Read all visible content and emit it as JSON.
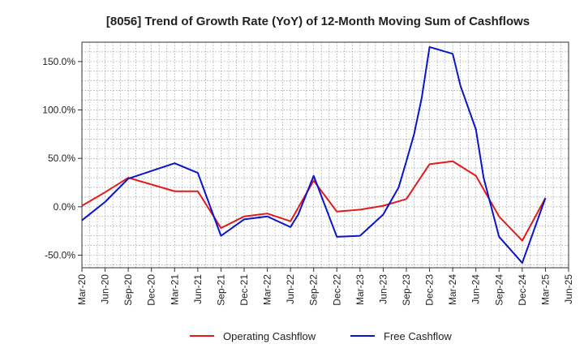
{
  "chart_data": {
    "type": "line",
    "title": "[8056]  Trend of Growth Rate (YoY) of 12-Month Moving Sum of Cashflows",
    "xlabel": "",
    "ylabel": "",
    "x": [
      "Mar-20",
      "Apr-20",
      "May-20",
      "Jun-20",
      "Jul-20",
      "Aug-20",
      "Sep-20",
      "Oct-20",
      "Nov-20",
      "Dec-20",
      "Jan-21",
      "Feb-21",
      "Mar-21",
      "Apr-21",
      "May-21",
      "Jun-21",
      "Jul-21",
      "Aug-21",
      "Sep-21",
      "Oct-21",
      "Nov-21",
      "Dec-21",
      "Jan-22",
      "Feb-22",
      "Mar-22",
      "Apr-22",
      "May-22",
      "Jun-22",
      "Jul-22",
      "Aug-22",
      "Sep-22",
      "Oct-22",
      "Nov-22",
      "Dec-22",
      "Jan-23",
      "Feb-23",
      "Mar-23",
      "Apr-23",
      "May-23",
      "Jun-23",
      "Jul-23",
      "Aug-23",
      "Sep-23",
      "Oct-23",
      "Nov-23",
      "Dec-23",
      "Jan-24",
      "Feb-24",
      "Mar-24",
      "Apr-24",
      "May-24",
      "Jun-24",
      "Jul-24",
      "Aug-24",
      "Sep-24",
      "Oct-24",
      "Nov-24",
      "Dec-24",
      "Jan-25",
      "Feb-25",
      "Mar-25"
    ],
    "x_tick_labels": [
      "Mar-20",
      "Jun-20",
      "Sep-20",
      "Dec-20",
      "Mar-21",
      "Jun-21",
      "Sep-21",
      "Dec-21",
      "Mar-22",
      "Jun-22",
      "Sep-22",
      "Dec-22",
      "Mar-23",
      "Jun-23",
      "Sep-23",
      "Dec-23",
      "Mar-24",
      "Jun-24",
      "Sep-24",
      "Dec-24",
      "Mar-25",
      "Jun-25"
    ],
    "y_ticks": [
      -50,
      0,
      50,
      100,
      150
    ],
    "y_tick_labels": [
      "-50.0%",
      "0.0%",
      "50.0%",
      "100.0%",
      "150.0%"
    ],
    "ylim": [
      -63,
      170
    ],
    "x_range_months": [
      0,
      63
    ],
    "grid": true,
    "legend_position": "bottom",
    "series": [
      {
        "name": "Operating Cashflow",
        "color": "#e31a1c",
        "points": [
          [
            0,
            1
          ],
          [
            3,
            15
          ],
          [
            6,
            30
          ],
          [
            9,
            23
          ],
          [
            12,
            16
          ],
          [
            15,
            16
          ],
          [
            18,
            -22
          ],
          [
            21,
            -10
          ],
          [
            24,
            -7
          ],
          [
            27,
            -15
          ],
          [
            30,
            27
          ],
          [
            33,
            -5
          ],
          [
            36,
            -3
          ],
          [
            39,
            1
          ],
          [
            42,
            8
          ],
          [
            45,
            44
          ],
          [
            48,
            47
          ],
          [
            51,
            32
          ],
          [
            54,
            -10
          ],
          [
            57,
            -35
          ],
          [
            60,
            9
          ]
        ]
      },
      {
        "name": "Free Cashflow",
        "color": "#0a14c8",
        "points": [
          [
            0,
            -14
          ],
          [
            3,
            5
          ],
          [
            6,
            29
          ],
          [
            9,
            37
          ],
          [
            12,
            45
          ],
          [
            15,
            35
          ],
          [
            18,
            -30
          ],
          [
            21,
            -13
          ],
          [
            24,
            -10
          ],
          [
            27,
            -21
          ],
          [
            28,
            -8
          ],
          [
            30,
            32
          ],
          [
            33,
            -31
          ],
          [
            36,
            -30
          ],
          [
            39,
            -8
          ],
          [
            41,
            20
          ],
          [
            42,
            47
          ],
          [
            43,
            75
          ],
          [
            44,
            113
          ],
          [
            45,
            165
          ],
          [
            48,
            158
          ],
          [
            49,
            125
          ],
          [
            51,
            80
          ],
          [
            52,
            30
          ],
          [
            54,
            -31
          ],
          [
            57,
            -58
          ],
          [
            60,
            9
          ]
        ]
      }
    ]
  }
}
